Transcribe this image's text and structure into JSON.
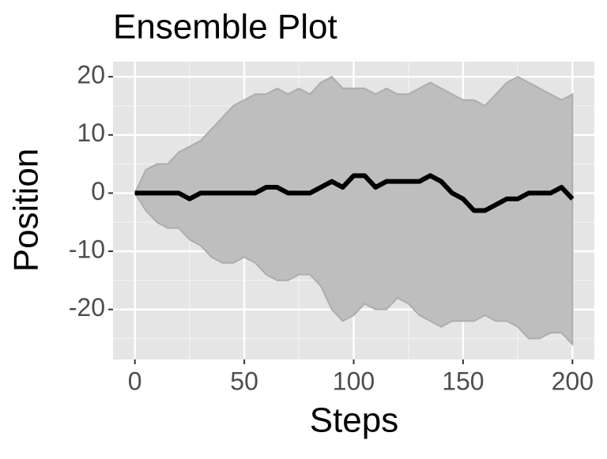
{
  "chart_data": {
    "type": "line",
    "title": "Ensemble Plot",
    "x_label": "Steps",
    "y_label": "Position",
    "x": [
      0,
      5,
      10,
      15,
      20,
      25,
      30,
      35,
      40,
      45,
      50,
      55,
      60,
      65,
      70,
      75,
      80,
      85,
      90,
      95,
      100,
      105,
      110,
      115,
      120,
      125,
      130,
      135,
      140,
      145,
      150,
      155,
      160,
      165,
      170,
      175,
      180,
      185,
      190,
      195,
      200
    ],
    "series": [
      {
        "color": "#000000",
        "values": [
          0,
          0,
          0,
          0,
          0,
          -1,
          0,
          0,
          0,
          0,
          0,
          0,
          1,
          1,
          0,
          0,
          0,
          1,
          2,
          1,
          3,
          3,
          1,
          2,
          2,
          2,
          2,
          3,
          2,
          0,
          -1,
          -3,
          -3,
          -2,
          -1,
          -1,
          0,
          0,
          0,
          1,
          -1
        ]
      }
    ],
    "ribbon": {
      "color": "#bebebe",
      "upper": [
        0,
        4,
        5,
        5,
        7,
        8,
        9,
        11,
        13,
        15,
        16,
        17,
        17,
        18,
        17,
        18,
        17,
        19,
        20,
        18,
        18,
        18,
        17,
        18,
        17,
        17,
        18,
        19,
        18,
        17,
        16,
        16,
        15,
        17,
        19,
        20,
        19,
        18,
        17,
        16,
        17
      ],
      "lower": [
        0,
        -3,
        -5,
        -6,
        -6,
        -8,
        -9,
        -11,
        -12,
        -12,
        -11,
        -12,
        -14,
        -15,
        -15,
        -14,
        -14,
        -16,
        -20,
        -22,
        -21,
        -19,
        -20,
        -20,
        -18,
        -19,
        -21,
        -22,
        -23,
        -22,
        -22,
        -22,
        -21,
        -22,
        -22,
        -23,
        -25,
        -25,
        -24,
        -24,
        -26
      ]
    },
    "xlim": [
      -10,
      210
    ],
    "ylim": [
      -28.6,
      22.6
    ],
    "xticks": [
      0,
      50,
      100,
      150,
      200
    ],
    "yticks": [
      -20,
      -10,
      0,
      10,
      20
    ],
    "grid": true
  }
}
